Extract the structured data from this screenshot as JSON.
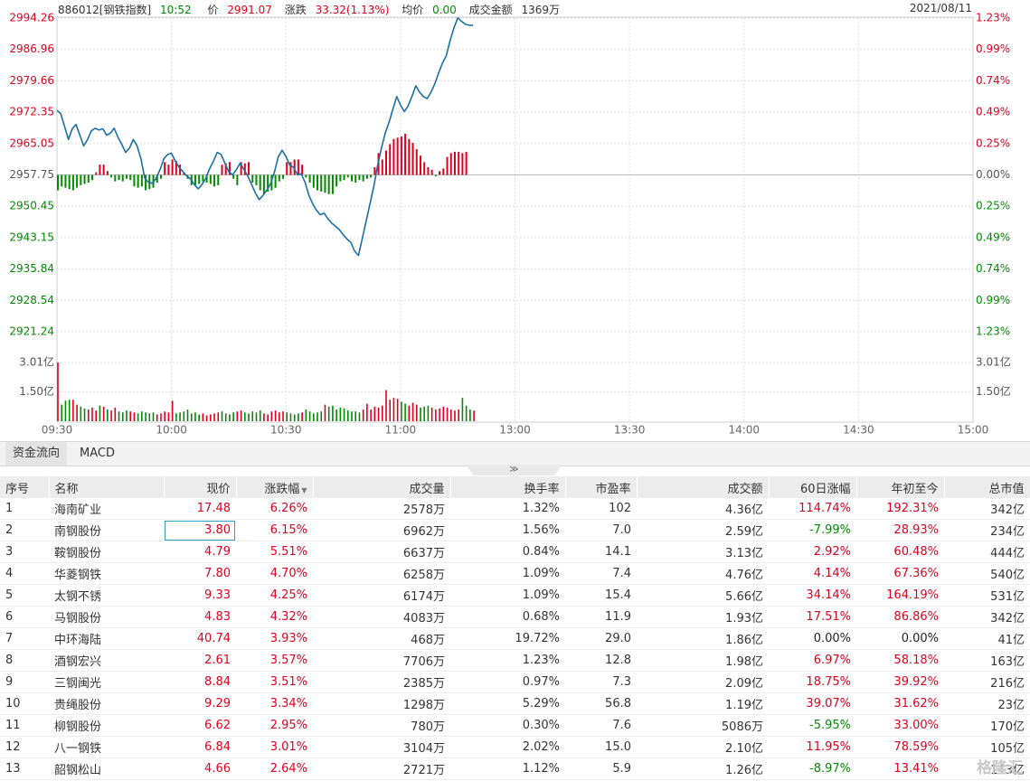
{
  "header": {
    "code_name": "886012[钢铁指数]",
    "time": "10:52",
    "price_label": "价",
    "price": "2991.07",
    "change_label": "涨跌",
    "change": "33.32(1.13%)",
    "avg_label": "均价",
    "avg": "0.00",
    "turnover_label": "成交金额",
    "turnover": "1369万",
    "date": "2021/08/11"
  },
  "chart_data": {
    "type": "line",
    "base_price": 2957.75,
    "ylim": [
      2921.24,
      2994.26
    ],
    "y_ticks_left": [
      "2994.26",
      "2986.96",
      "2979.66",
      "2972.35",
      "2965.05",
      "2957.75",
      "2950.45",
      "2943.15",
      "2935.84",
      "2928.54",
      "2921.24"
    ],
    "y_ticks_right": [
      "1.23%",
      "0.99%",
      "0.74%",
      "0.49%",
      "0.25%",
      "0.00%",
      "0.25%",
      "0.49%",
      "0.74%",
      "0.99%",
      "1.23%"
    ],
    "vol_ticks_left": [
      "3.01亿",
      "1.50亿"
    ],
    "vol_ticks_right": [
      "3.01亿",
      "1.50亿"
    ],
    "x_ticks": [
      "09:30",
      "10:00",
      "10:30",
      "11:00",
      "13:00",
      "13:30",
      "14:00",
      "14:30",
      "15:00"
    ],
    "minutes_total": 240,
    "price_series": [
      [
        0,
        2972.8
      ],
      [
        1,
        2972
      ],
      [
        2,
        2969
      ],
      [
        3,
        2966
      ],
      [
        4,
        2968.5
      ],
      [
        5,
        2969.5
      ],
      [
        6,
        2967
      ],
      [
        7,
        2964.5
      ],
      [
        8,
        2966
      ],
      [
        9,
        2968
      ],
      [
        10,
        2968.6
      ],
      [
        11,
        2968.2
      ],
      [
        12,
        2968.5
      ],
      [
        13,
        2967
      ],
      [
        14,
        2967.5
      ],
      [
        15,
        2968.6
      ],
      [
        16,
        2966.5
      ],
      [
        17,
        2964.8
      ],
      [
        18,
        2963
      ],
      [
        19,
        2964
      ],
      [
        20,
        2966
      ],
      [
        21,
        2964.5
      ],
      [
        22,
        2961.5
      ],
      [
        23,
        2957
      ],
      [
        24,
        2956
      ],
      [
        25,
        2955.8
      ],
      [
        26,
        2957
      ],
      [
        27,
        2959
      ],
      [
        28,
        2961.5
      ],
      [
        29,
        2962.5
      ],
      [
        30,
        2962.8
      ],
      [
        31,
        2961
      ],
      [
        32,
        2959.5
      ],
      [
        33,
        2958.5
      ],
      [
        34,
        2957.5
      ],
      [
        35,
        2956.8
      ],
      [
        36,
        2955.5
      ],
      [
        37,
        2954.5
      ],
      [
        38,
        2955.5
      ],
      [
        39,
        2957
      ],
      [
        40,
        2959.2
      ],
      [
        41,
        2961
      ],
      [
        42,
        2963
      ],
      [
        43,
        2962.5
      ],
      [
        44,
        2960.5
      ],
      [
        45,
        2958.5
      ],
      [
        46,
        2957.8
      ],
      [
        47,
        2959
      ],
      [
        48,
        2960.5
      ],
      [
        49,
        2959
      ],
      [
        50,
        2957.5
      ],
      [
        51,
        2955.5
      ],
      [
        52,
        2953.5
      ],
      [
        53,
        2952
      ],
      [
        54,
        2953
      ],
      [
        55,
        2954.2
      ],
      [
        56,
        2955.8
      ],
      [
        57,
        2958.5
      ],
      [
        58,
        2962
      ],
      [
        59,
        2963.5
      ],
      [
        60,
        2962
      ],
      [
        61,
        2960
      ],
      [
        62,
        2959.5
      ],
      [
        63,
        2957.8
      ],
      [
        64,
        2958
      ],
      [
        65,
        2956
      ],
      [
        66,
        2953
      ],
      [
        67,
        2951
      ],
      [
        68,
        2949.5
      ],
      [
        69,
        2948.5
      ],
      [
        70,
        2948.8
      ],
      [
        71,
        2947.5
      ],
      [
        72,
        2946.5
      ],
      [
        73,
        2945.8
      ],
      [
        74,
        2945
      ],
      [
        75,
        2943.8
      ],
      [
        76,
        2942.8
      ],
      [
        77,
        2942
      ],
      [
        78,
        2940
      ],
      [
        79,
        2939
      ],
      [
        80,
        2943
      ],
      [
        81,
        2947
      ],
      [
        82,
        2951
      ],
      [
        83,
        2955
      ],
      [
        84,
        2960
      ],
      [
        85,
        2964
      ],
      [
        86,
        2967.5
      ],
      [
        87,
        2970
      ],
      [
        88,
        2973
      ],
      [
        89,
        2976
      ],
      [
        90,
        2974
      ],
      [
        91,
        2972.5
      ],
      [
        92,
        2973.8
      ],
      [
        93,
        2976
      ],
      [
        94,
        2978.5
      ],
      [
        95,
        2977
      ],
      [
        96,
        2976
      ],
      [
        97,
        2975.5
      ],
      [
        98,
        2977
      ],
      [
        99,
        2979
      ],
      [
        100,
        2981.5
      ],
      [
        101,
        2983.8
      ],
      [
        102,
        2985.5
      ],
      [
        103,
        2989
      ],
      [
        104,
        2992
      ],
      [
        105,
        2994.3
      ],
      [
        106,
        2993.5
      ],
      [
        107,
        2992.8
      ],
      [
        108,
        2992.6
      ],
      [
        109,
        2992.6
      ]
    ],
    "volume_bars": [
      3.01,
      0.85,
      1.05,
      1.1,
      1.1,
      0.85,
      0.75,
      0.65,
      0.6,
      0.7,
      0.55,
      0.8,
      0.75,
      0.6,
      0.55,
      0.7,
      0.5,
      0.45,
      0.55,
      0.5,
      0.45,
      0.4,
      0.5,
      0.45,
      0.4,
      0.45,
      0.35,
      0.4,
      0.5,
      0.45,
      1.05,
      0.4,
      0.45,
      0.5,
      0.6,
      0.4,
      0.45,
      0.35,
      0.4,
      0.3,
      0.35,
      0.4,
      0.45,
      0.5,
      0.4,
      0.35,
      0.45,
      0.5,
      0.55,
      0.45,
      0.4,
      0.5,
      0.45,
      0.55,
      0.4,
      0.35,
      0.5,
      0.55,
      0.45,
      0.5,
      0.45,
      0.4,
      0.35,
      0.4,
      0.45,
      0.6,
      0.5,
      0.4,
      0.45,
      0.5,
      0.85,
      0.75,
      0.8,
      0.6,
      0.7,
      0.65,
      0.55,
      0.5,
      0.5,
      0.45,
      0.6,
      0.9,
      0.6,
      0.75,
      0.7,
      0.8,
      1.6,
      1.1,
      1.2,
      1.15,
      1.0,
      0.9,
      0.8,
      0.95,
      0.85,
      0.7,
      0.75,
      0.8,
      0.7,
      0.6,
      0.65,
      0.75,
      0.7,
      0.6,
      0.55,
      0.6,
      1.2,
      0.8,
      0.6,
      0.55
    ],
    "diff_bars": [
      [
        0,
        -12
      ],
      [
        1,
        -9
      ],
      [
        2,
        -10
      ],
      [
        3,
        -11
      ],
      [
        4,
        -12
      ],
      [
        5,
        -10
      ],
      [
        6,
        -8
      ],
      [
        7,
        -7
      ],
      [
        8,
        -6
      ],
      [
        9,
        -4
      ],
      [
        10,
        2
      ],
      [
        11,
        8
      ],
      [
        12,
        8
      ],
      [
        13,
        3
      ],
      [
        14,
        -2
      ],
      [
        15,
        -5
      ],
      [
        16,
        -4
      ],
      [
        17,
        -5
      ],
      [
        18,
        -3
      ],
      [
        19,
        -4
      ],
      [
        20,
        -9
      ],
      [
        21,
        -10
      ],
      [
        22,
        -9
      ],
      [
        23,
        -12
      ],
      [
        24,
        -11
      ],
      [
        25,
        -10
      ],
      [
        26,
        -6
      ],
      [
        27,
        -3
      ],
      [
        28,
        10
      ],
      [
        29,
        8
      ],
      [
        30,
        12
      ],
      [
        31,
        11
      ],
      [
        32,
        8
      ],
      [
        33,
        2
      ],
      [
        34,
        -3
      ],
      [
        35,
        -8
      ],
      [
        36,
        -8
      ],
      [
        37,
        -7
      ],
      [
        38,
        -5
      ],
      [
        39,
        -6
      ],
      [
        40,
        -7
      ],
      [
        41,
        -9
      ],
      [
        42,
        -8
      ],
      [
        43,
        8
      ],
      [
        44,
        9
      ],
      [
        45,
        10
      ],
      [
        46,
        -3
      ],
      [
        47,
        -8
      ],
      [
        48,
        10
      ],
      [
        49,
        9
      ],
      [
        50,
        10
      ],
      [
        51,
        -6
      ],
      [
        52,
        -8
      ],
      [
        53,
        -12
      ],
      [
        54,
        -15
      ],
      [
        55,
        -13
      ],
      [
        56,
        -12
      ],
      [
        57,
        -10
      ],
      [
        58,
        -5
      ],
      [
        59,
        -3
      ],
      [
        60,
        10
      ],
      [
        61,
        10
      ],
      [
        62,
        12
      ],
      [
        63,
        12
      ],
      [
        64,
        8
      ],
      [
        65,
        -2
      ],
      [
        66,
        -6
      ],
      [
        67,
        -10
      ],
      [
        68,
        -12
      ],
      [
        69,
        -13
      ],
      [
        70,
        -14
      ],
      [
        71,
        -15
      ],
      [
        72,
        -15
      ],
      [
        73,
        -9
      ],
      [
        74,
        -5
      ],
      [
        75,
        -4
      ],
      [
        76,
        -2
      ],
      [
        77,
        -5
      ],
      [
        78,
        -6
      ],
      [
        79,
        -4
      ],
      [
        80,
        -5
      ],
      [
        81,
        -3
      ],
      [
        82,
        -2
      ],
      [
        83,
        6
      ],
      [
        84,
        17
      ],
      [
        85,
        12
      ],
      [
        86,
        19
      ],
      [
        87,
        24
      ],
      [
        88,
        28
      ],
      [
        89,
        29
      ],
      [
        90,
        30
      ],
      [
        91,
        32
      ],
      [
        92,
        28
      ],
      [
        93,
        25
      ],
      [
        94,
        20
      ],
      [
        95,
        15
      ],
      [
        96,
        10
      ],
      [
        97,
        6
      ],
      [
        98,
        4
      ],
      [
        99,
        -1
      ],
      [
        100,
        3
      ],
      [
        101,
        5
      ],
      [
        102,
        14
      ],
      [
        103,
        17
      ],
      [
        104,
        18
      ],
      [
        105,
        18
      ],
      [
        106,
        17
      ],
      [
        107,
        18
      ],
      [
        108,
        0
      ]
    ]
  },
  "tabs": [
    {
      "label": "资金流向"
    },
    {
      "label": "MACD"
    }
  ],
  "collapse_glyph": "≫",
  "table": {
    "columns": [
      "序号",
      "名称",
      "现价",
      "涨跌幅",
      "成交量",
      "换手率",
      "市盈率",
      "成交额",
      "60日涨幅",
      "年初至今",
      "总市值"
    ],
    "sort_glyph": "▼",
    "rows": [
      [
        "1",
        "海南矿业",
        "17.48",
        "6.26%",
        "2578万",
        "1.32%",
        "102",
        "4.36亿",
        "114.74%",
        "192.31%",
        "342亿"
      ],
      [
        "2",
        "南钢股份",
        "3.80",
        "6.15%",
        "6962万",
        "1.56%",
        "7.0",
        "2.59亿",
        "-7.99%",
        "28.93%",
        "234亿"
      ],
      [
        "3",
        "鞍钢股份",
        "4.79",
        "5.51%",
        "6637万",
        "0.84%",
        "14.1",
        "3.13亿",
        "2.92%",
        "60.48%",
        "444亿"
      ],
      [
        "4",
        "华菱钢铁",
        "7.80",
        "4.70%",
        "6258万",
        "1.09%",
        "7.4",
        "4.76亿",
        "4.14%",
        "67.36%",
        "540亿"
      ],
      [
        "5",
        "太钢不锈",
        "9.33",
        "4.25%",
        "6174万",
        "1.09%",
        "15.4",
        "5.66亿",
        "34.14%",
        "164.19%",
        "531亿"
      ],
      [
        "6",
        "马钢股份",
        "4.83",
        "4.32%",
        "4083万",
        "0.68%",
        "11.9",
        "1.93亿",
        "17.51%",
        "86.86%",
        "342亿"
      ],
      [
        "7",
        "中环海陆",
        "40.74",
        "3.93%",
        "468万",
        "19.72%",
        "29.0",
        "1.86亿",
        "0.00%",
        "0.00%",
        "41亿"
      ],
      [
        "8",
        "酒钢宏兴",
        "2.61",
        "3.57%",
        "7706万",
        "1.23%",
        "12.8",
        "1.98亿",
        "6.97%",
        "58.18%",
        "163亿"
      ],
      [
        "9",
        "三钢闽光",
        "8.84",
        "3.51%",
        "2385万",
        "0.97%",
        "7.3",
        "2.09亿",
        "18.75%",
        "39.92%",
        "216亿"
      ],
      [
        "10",
        "贵绳股份",
        "9.29",
        "3.34%",
        "1298万",
        "5.29%",
        "56.8",
        "1.19亿",
        "39.07%",
        "31.62%",
        "23亿"
      ],
      [
        "11",
        "柳钢股份",
        "6.62",
        "2.95%",
        "780万",
        "0.30%",
        "7.6",
        "5086万",
        "-5.95%",
        "33.00%",
        "170亿"
      ],
      [
        "12",
        "八一钢铁",
        "6.84",
        "3.01%",
        "3104万",
        "2.02%",
        "15.0",
        "2.10亿",
        "11.95%",
        "78.59%",
        "105亿"
      ],
      [
        "13",
        "韶钢松山",
        "4.66",
        "2.64%",
        "2721万",
        "1.12%",
        "5.9",
        "1.26亿",
        "-8.97%",
        "13.41%",
        "113亿"
      ]
    ]
  },
  "watermark": "格隆汇",
  "colors": {
    "up": "#e0001b",
    "down": "#008b00",
    "line": "#1d6fa3",
    "grid": "#dddddd"
  }
}
